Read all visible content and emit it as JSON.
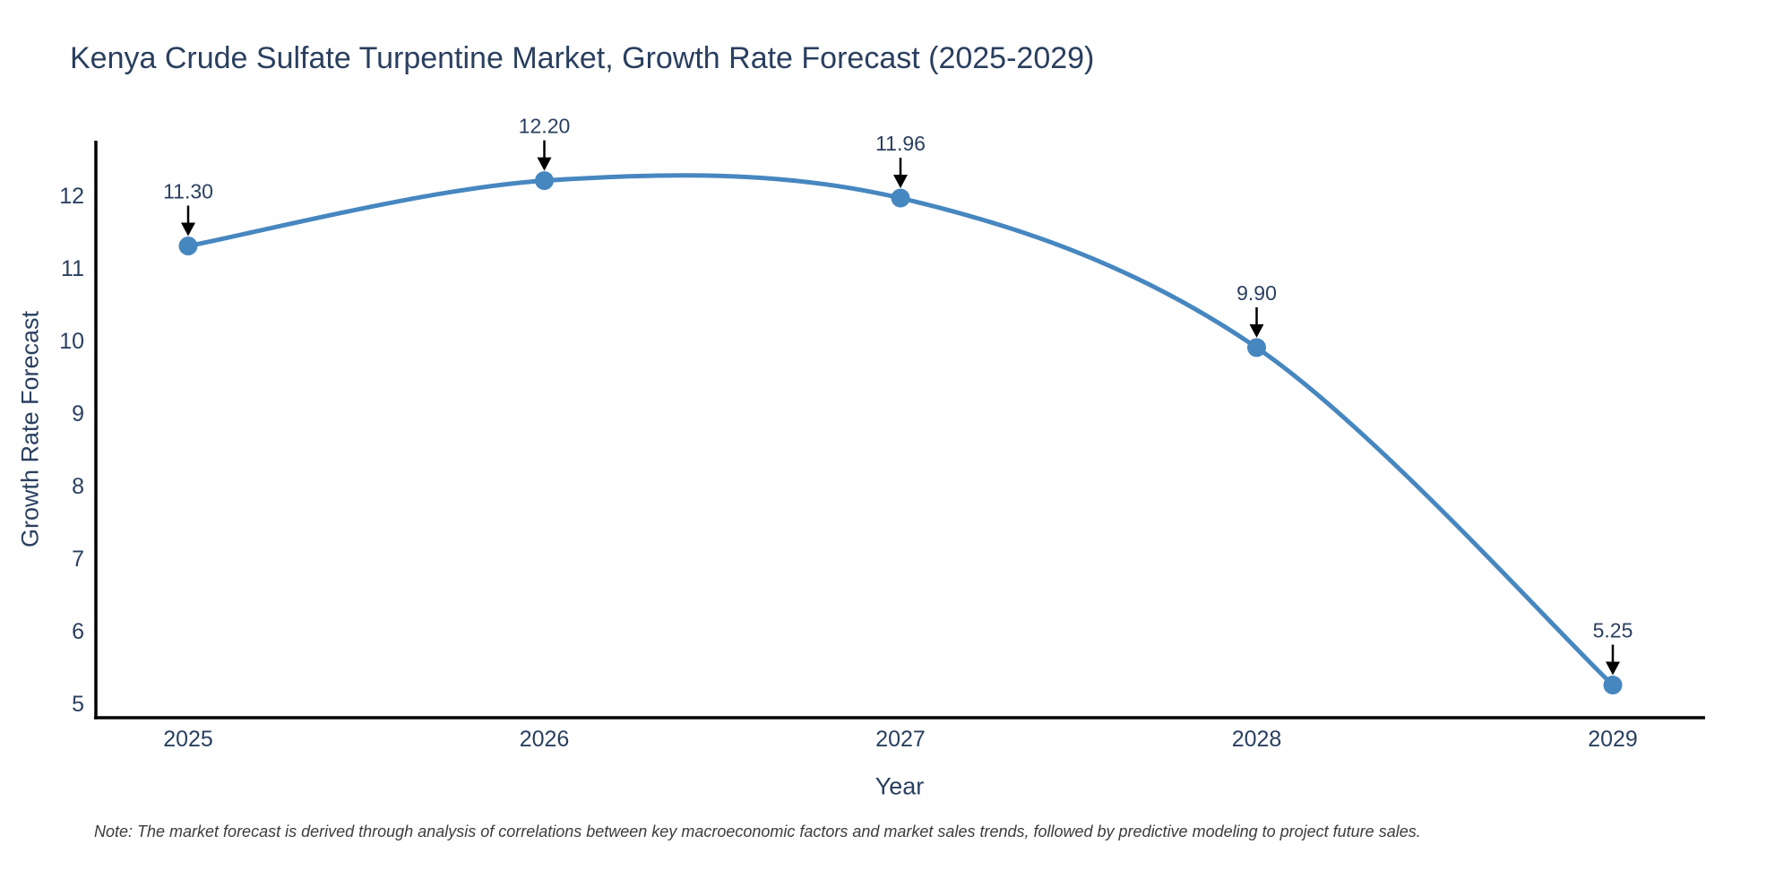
{
  "chart_data": {
    "type": "line",
    "title": "Kenya Crude Sulfate Turpentine Market, Growth Rate Forecast (2025-2029)",
    "xlabel": "Year",
    "ylabel": "Growth Rate Forecast",
    "x": [
      2025,
      2026,
      2027,
      2028,
      2029
    ],
    "y": [
      11.3,
      12.2,
      11.96,
      9.9,
      5.25
    ],
    "point_labels": [
      "11.30",
      "12.20",
      "11.96",
      "9.90",
      "5.25"
    ],
    "x_tick_labels": [
      "2025",
      "2026",
      "2027",
      "2028",
      "2029"
    ],
    "y_tick_values": [
      5,
      6,
      7,
      8,
      9,
      10,
      11,
      12
    ],
    "ylim": [
      4.8,
      12.75
    ],
    "xlim": [
      2024.74,
      2029.26
    ],
    "line_shape": "spline",
    "grid": false,
    "legend_position": "none",
    "colors": {
      "line": "#4787C0",
      "marker": "#4787C0",
      "axis": "#000000",
      "text": "#2a3f5f",
      "arrow": "#000000",
      "background": "#ffffff"
    }
  },
  "note": "Note: The market forecast is derived through analysis of correlations between key macroeconomic factors and market sales trends, followed by predictive modeling to project future sales."
}
